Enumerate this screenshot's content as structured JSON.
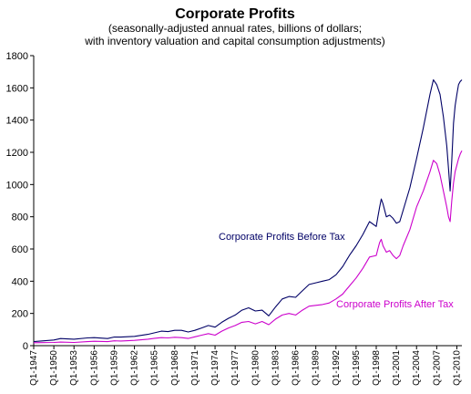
{
  "chart_data": {
    "type": "line",
    "title": "Corporate Profits",
    "subtitle_lines": [
      "(seasonally-adjusted annual rates, billions of dollars;",
      "with inventory valuation and capital consumption adjustments)"
    ],
    "xlabel": "",
    "ylabel": "",
    "ylim": [
      0,
      1800
    ],
    "yticks": [
      0,
      200,
      400,
      600,
      800,
      1000,
      1200,
      1400,
      1600,
      1800
    ],
    "xticks": [
      "Q1-1947",
      "Q1-1950",
      "Q1-1953",
      "Q1-1956",
      "Q1-1959",
      "Q1-1962",
      "Q1-1965",
      "Q1-1968",
      "Q1-1971",
      "Q1-1974",
      "Q1-1977",
      "Q1-1980",
      "Q1-1983",
      "Q1-1986",
      "Q1-1989",
      "Q1-1992",
      "Q1-1995",
      "Q1-1998",
      "Q1-2001",
      "Q1-2004",
      "Q1-2007",
      "Q1-2010"
    ],
    "xrange": [
      1947.0,
      2010.75
    ],
    "grid": false,
    "legend": "none",
    "series": [
      {
        "name": "Corporate Profits Before Tax",
        "color": "#000066",
        "label_text": "Corporate Profits Before Tax",
        "points": [
          [
            1947.0,
            25
          ],
          [
            1950.0,
            35
          ],
          [
            1951.0,
            44
          ],
          [
            1953.0,
            40
          ],
          [
            1955.0,
            48
          ],
          [
            1956.0,
            50
          ],
          [
            1958.0,
            44
          ],
          [
            1959.0,
            54
          ],
          [
            1960.0,
            53
          ],
          [
            1962.0,
            58
          ],
          [
            1964.0,
            70
          ],
          [
            1965.0,
            80
          ],
          [
            1966.0,
            90
          ],
          [
            1967.0,
            87
          ],
          [
            1968.0,
            95
          ],
          [
            1969.0,
            95
          ],
          [
            1970.0,
            85
          ],
          [
            1971.0,
            95
          ],
          [
            1972.0,
            110
          ],
          [
            1973.0,
            125
          ],
          [
            1974.0,
            115
          ],
          [
            1975.0,
            145
          ],
          [
            1976.0,
            170
          ],
          [
            1977.0,
            190
          ],
          [
            1978.0,
            220
          ],
          [
            1979.0,
            235
          ],
          [
            1980.0,
            215
          ],
          [
            1981.0,
            220
          ],
          [
            1982.0,
            185
          ],
          [
            1983.0,
            240
          ],
          [
            1984.0,
            290
          ],
          [
            1985.0,
            305
          ],
          [
            1986.0,
            300
          ],
          [
            1987.0,
            340
          ],
          [
            1988.0,
            380
          ],
          [
            1989.0,
            390
          ],
          [
            1990.0,
            400
          ],
          [
            1991.0,
            410
          ],
          [
            1992.0,
            440
          ],
          [
            1993.0,
            490
          ],
          [
            1994.0,
            560
          ],
          [
            1995.0,
            620
          ],
          [
            1996.0,
            690
          ],
          [
            1997.0,
            770
          ],
          [
            1998.0,
            740
          ],
          [
            1998.25,
            800
          ],
          [
            1998.5,
            860
          ],
          [
            1998.75,
            910
          ],
          [
            1999.0,
            880
          ],
          [
            1999.5,
            800
          ],
          [
            2000.0,
            810
          ],
          [
            2000.5,
            790
          ],
          [
            2001.0,
            760
          ],
          [
            2001.5,
            770
          ],
          [
            2002.0,
            840
          ],
          [
            2003.0,
            980
          ],
          [
            2004.0,
            1160
          ],
          [
            2005.0,
            1350
          ],
          [
            2006.0,
            1560
          ],
          [
            2006.5,
            1650
          ],
          [
            2007.0,
            1620
          ],
          [
            2007.5,
            1560
          ],
          [
            2008.0,
            1420
          ],
          [
            2008.5,
            1240
          ],
          [
            2008.75,
            1100
          ],
          [
            2009.0,
            960
          ],
          [
            2009.25,
            1150
          ],
          [
            2009.5,
            1380
          ],
          [
            2009.75,
            1490
          ],
          [
            2010.0,
            1560
          ],
          [
            2010.25,
            1620
          ],
          [
            2010.5,
            1640
          ],
          [
            2010.75,
            1650
          ]
        ]
      },
      {
        "name": "Corporate Profits After Tax",
        "color": "#cc00cc",
        "label_text": "Corporate Profits After Tax",
        "points": [
          [
            1947.0,
            18
          ],
          [
            1950.0,
            20
          ],
          [
            1951.0,
            22
          ],
          [
            1953.0,
            20
          ],
          [
            1955.0,
            25
          ],
          [
            1956.0,
            27
          ],
          [
            1958.0,
            25
          ],
          [
            1959.0,
            30
          ],
          [
            1960.0,
            29
          ],
          [
            1962.0,
            33
          ],
          [
            1964.0,
            40
          ],
          [
            1965.0,
            46
          ],
          [
            1966.0,
            50
          ],
          [
            1967.0,
            48
          ],
          [
            1968.0,
            52
          ],
          [
            1969.0,
            50
          ],
          [
            1970.0,
            45
          ],
          [
            1971.0,
            55
          ],
          [
            1972.0,
            65
          ],
          [
            1973.0,
            75
          ],
          [
            1974.0,
            65
          ],
          [
            1975.0,
            90
          ],
          [
            1976.0,
            110
          ],
          [
            1977.0,
            125
          ],
          [
            1978.0,
            145
          ],
          [
            1979.0,
            150
          ],
          [
            1980.0,
            135
          ],
          [
            1981.0,
            150
          ],
          [
            1982.0,
            130
          ],
          [
            1983.0,
            165
          ],
          [
            1984.0,
            190
          ],
          [
            1985.0,
            200
          ],
          [
            1986.0,
            190
          ],
          [
            1987.0,
            220
          ],
          [
            1988.0,
            245
          ],
          [
            1989.0,
            250
          ],
          [
            1990.0,
            255
          ],
          [
            1991.0,
            265
          ],
          [
            1992.0,
            290
          ],
          [
            1993.0,
            320
          ],
          [
            1994.0,
            370
          ],
          [
            1995.0,
            420
          ],
          [
            1996.0,
            480
          ],
          [
            1997.0,
            550
          ],
          [
            1998.0,
            560
          ],
          [
            1998.25,
            600
          ],
          [
            1998.5,
            640
          ],
          [
            1998.75,
            660
          ],
          [
            1999.0,
            620
          ],
          [
            1999.5,
            580
          ],
          [
            2000.0,
            590
          ],
          [
            2000.5,
            560
          ],
          [
            2001.0,
            540
          ],
          [
            2001.5,
            560
          ],
          [
            2002.0,
            620
          ],
          [
            2003.0,
            720
          ],
          [
            2004.0,
            860
          ],
          [
            2005.0,
            960
          ],
          [
            2006.0,
            1080
          ],
          [
            2006.5,
            1150
          ],
          [
            2007.0,
            1130
          ],
          [
            2007.5,
            1060
          ],
          [
            2008.0,
            960
          ],
          [
            2008.5,
            860
          ],
          [
            2008.75,
            800
          ],
          [
            2009.0,
            770
          ],
          [
            2009.25,
            900
          ],
          [
            2009.5,
            1010
          ],
          [
            2009.75,
            1080
          ],
          [
            2010.0,
            1120
          ],
          [
            2010.25,
            1160
          ],
          [
            2010.5,
            1190
          ],
          [
            2010.75,
            1210
          ]
        ]
      }
    ]
  }
}
